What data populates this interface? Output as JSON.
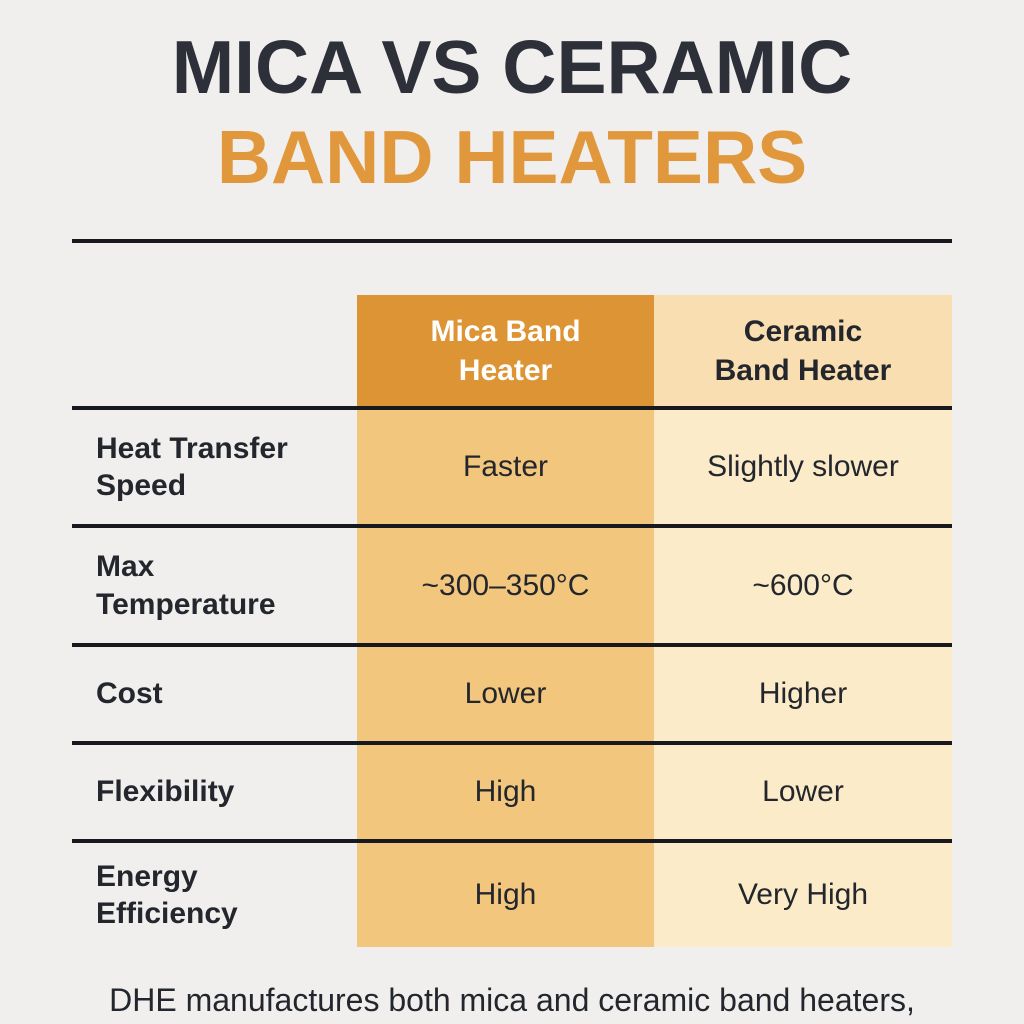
{
  "colors": {
    "background": "#f0efed",
    "title_primary": "#2d3039",
    "accent_orange": "#e1983c",
    "mica_header_bg": "#dd9434",
    "mica_header_text": "#ffffff",
    "mica_body_bg": "#f2c67d",
    "ceramic_header_bg": "#f8deb0",
    "ceramic_body_bg": "#fcebc9",
    "line": "#17191e",
    "text_dark": "#23262c"
  },
  "title": {
    "line1": "MICA VS CERAMIC",
    "line2": "BAND HEATERS"
  },
  "table": {
    "columns": [
      {
        "label": "Mica Band\nHeater"
      },
      {
        "label": "Ceramic\nBand Heater"
      }
    ],
    "rows": [
      {
        "label": "Heat Transfer\nSpeed",
        "mica": "Faster",
        "ceramic": "Slightly slower"
      },
      {
        "label": "Max\nTemperature",
        "mica": "~300–350°C",
        "ceramic": "~600°C"
      },
      {
        "label": "Cost",
        "mica": "Lower",
        "ceramic": "Higher"
      },
      {
        "label": "Flexibility",
        "mica": "High",
        "ceramic": "Lower"
      },
      {
        "label": "Energy\nEfficiency",
        "mica": "High",
        "ceramic": "Very High"
      }
    ]
  },
  "footer": {
    "text": "DHE manufactures both mica and ceramic band heaters,"
  },
  "chart_data": {
    "type": "table",
    "title": "MICA VS CERAMIC BAND HEATERS",
    "columns": [
      "",
      "Mica Band Heater",
      "Ceramic Band Heater"
    ],
    "rows": [
      [
        "Heat Transfer Speed",
        "Faster",
        "Slightly slower"
      ],
      [
        "Max Temperature",
        "~300–350°C",
        "~600°C"
      ],
      [
        "Cost",
        "Lower",
        "Higher"
      ],
      [
        "Flexibility",
        "High",
        "Lower"
      ],
      [
        "Energy Efficiency",
        "High",
        "Very High"
      ]
    ],
    "caption": "DHE manufactures both mica and ceramic band heaters,"
  }
}
